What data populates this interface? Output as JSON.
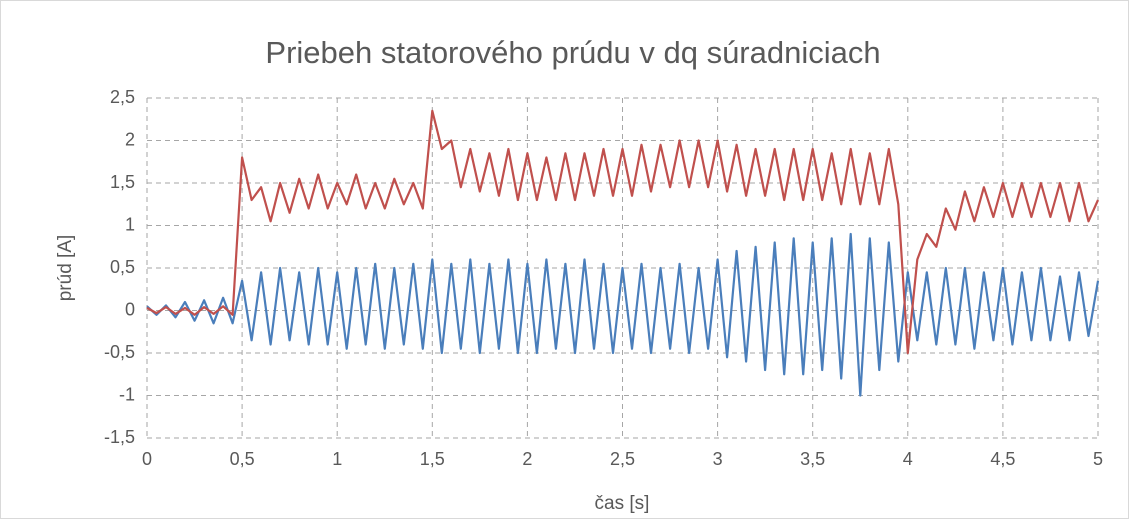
{
  "chart_data": {
    "type": "line",
    "title": "Priebeh statorového prúdu v dq súradniciach",
    "xlabel": "čas [s]",
    "ylabel": "prúd [A]",
    "x": [
      0,
      0.05,
      0.1,
      0.15,
      0.2,
      0.25,
      0.3,
      0.35,
      0.4,
      0.45,
      0.5,
      0.55,
      0.6,
      0.65,
      0.7,
      0.75,
      0.8,
      0.85,
      0.9,
      0.95,
      1,
      1.05,
      1.1,
      1.15,
      1.2,
      1.25,
      1.3,
      1.35,
      1.4,
      1.45,
      1.5,
      1.55,
      1.6,
      1.65,
      1.7,
      1.75,
      1.8,
      1.85,
      1.9,
      1.95,
      2,
      2.05,
      2.1,
      2.15,
      2.2,
      2.25,
      2.3,
      2.35,
      2.4,
      2.45,
      2.5,
      2.55,
      2.6,
      2.65,
      2.7,
      2.75,
      2.8,
      2.85,
      2.9,
      2.95,
      3,
      3.05,
      3.1,
      3.15,
      3.2,
      3.25,
      3.3,
      3.35,
      3.4,
      3.45,
      3.5,
      3.55,
      3.6,
      3.65,
      3.7,
      3.75,
      3.8,
      3.85,
      3.9,
      3.95,
      4,
      4.05,
      4.1,
      4.15,
      4.2,
      4.25,
      4.3,
      4.35,
      4.4,
      4.45,
      4.5,
      4.55,
      4.6,
      4.65,
      4.7,
      4.75,
      4.8,
      4.85,
      4.9,
      4.95,
      5
    ],
    "series": [
      {
        "color": "#4a7ebb",
        "values": [
          0.05,
          -0.05,
          0.06,
          -0.08,
          0.1,
          -0.12,
          0.12,
          -0.15,
          0.15,
          -0.15,
          0.35,
          -0.35,
          0.45,
          -0.4,
          0.5,
          -0.35,
          0.45,
          -0.4,
          0.5,
          -0.4,
          0.45,
          -0.45,
          0.5,
          -0.4,
          0.55,
          -0.45,
          0.5,
          -0.4,
          0.55,
          -0.45,
          0.6,
          -0.5,
          0.55,
          -0.45,
          0.6,
          -0.5,
          0.55,
          -0.45,
          0.6,
          -0.5,
          0.55,
          -0.5,
          0.6,
          -0.45,
          0.55,
          -0.5,
          0.6,
          -0.45,
          0.55,
          -0.5,
          0.5,
          -0.45,
          0.55,
          -0.5,
          0.5,
          -0.45,
          0.55,
          -0.5,
          0.5,
          -0.45,
          0.6,
          -0.55,
          0.7,
          -0.6,
          0.75,
          -0.7,
          0.8,
          -0.75,
          0.85,
          -0.75,
          0.8,
          -0.7,
          0.85,
          -0.8,
          0.9,
          -1.0,
          0.85,
          -0.7,
          0.8,
          -0.6,
          0.45,
          -0.35,
          0.45,
          -0.4,
          0.5,
          -0.4,
          0.5,
          -0.45,
          0.45,
          -0.35,
          0.5,
          -0.4,
          0.45,
          -0.35,
          0.5,
          -0.35,
          0.4,
          -0.35,
          0.45,
          -0.3,
          0.35
        ]
      },
      {
        "color": "#c0504d",
        "values": [
          0.03,
          -0.03,
          0.04,
          -0.04,
          0.03,
          -0.05,
          0.04,
          -0.04,
          0.05,
          -0.05,
          1.8,
          1.3,
          1.45,
          1.05,
          1.5,
          1.15,
          1.55,
          1.2,
          1.6,
          1.2,
          1.5,
          1.25,
          1.6,
          1.2,
          1.5,
          1.2,
          1.55,
          1.25,
          1.5,
          1.2,
          2.35,
          1.9,
          2.0,
          1.45,
          1.9,
          1.4,
          1.85,
          1.35,
          1.9,
          1.3,
          1.85,
          1.3,
          1.8,
          1.3,
          1.85,
          1.3,
          1.85,
          1.35,
          1.9,
          1.35,
          1.9,
          1.35,
          1.95,
          1.4,
          1.95,
          1.45,
          2.0,
          1.45,
          2.0,
          1.45,
          2.0,
          1.4,
          1.95,
          1.35,
          1.9,
          1.35,
          1.9,
          1.3,
          1.9,
          1.3,
          1.9,
          1.3,
          1.85,
          1.25,
          1.9,
          1.25,
          1.85,
          1.25,
          1.9,
          1.25,
          -0.5,
          0.6,
          0.9,
          0.75,
          1.2,
          0.95,
          1.4,
          1.05,
          1.45,
          1.1,
          1.5,
          1.1,
          1.5,
          1.1,
          1.5,
          1.1,
          1.5,
          1.05,
          1.5,
          1.05,
          1.3
        ]
      }
    ],
    "xlim": [
      0,
      5
    ],
    "xticks": [
      0,
      {
        "value": 0.5,
        "label": "0,5"
      },
      1,
      {
        "value": 1.5,
        "label": "1,5"
      },
      2,
      {
        "value": 2.5,
        "label": "2,5"
      },
      3,
      {
        "value": 3.5,
        "label": "3,5"
      },
      4,
      {
        "value": 4.5,
        "label": "4,5"
      },
      5
    ],
    "ylim": [
      -1.5,
      2.5
    ],
    "yticks": [
      {
        "value": -1.5,
        "label": "-1,5"
      },
      -1,
      {
        "value": -0.5,
        "label": "-0,5"
      },
      0,
      {
        "value": 0.5,
        "label": "0,5"
      },
      1,
      {
        "value": 1.5,
        "label": "1,5"
      },
      2,
      {
        "value": 2.5,
        "label": "2,5"
      }
    ],
    "grid": true
  }
}
